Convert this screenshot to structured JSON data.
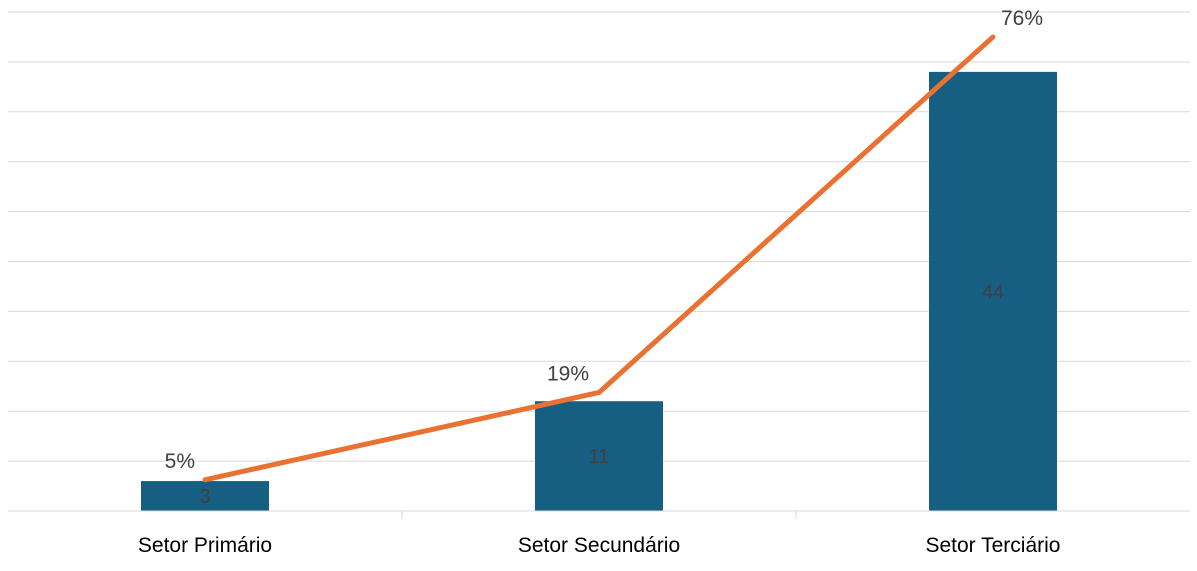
{
  "chart_data": {
    "type": "bar",
    "categories": [
      "Setor Primário",
      "Setor Secundário",
      "Setor Terciário"
    ],
    "series": [
      {
        "type": "bar",
        "values": [
          3,
          11,
          44
        ],
        "labels": [
          "3",
          "11",
          "44"
        ],
        "color": "#175f82"
      },
      {
        "type": "line",
        "values": [
          5,
          19,
          76
        ],
        "labels": [
          "5%",
          "19%",
          "76%"
        ],
        "color": "#e97132"
      }
    ],
    "ylim_bar": [
      0,
      50
    ],
    "ylim_line": [
      0,
      80
    ],
    "grid": true,
    "legend": "none"
  }
}
